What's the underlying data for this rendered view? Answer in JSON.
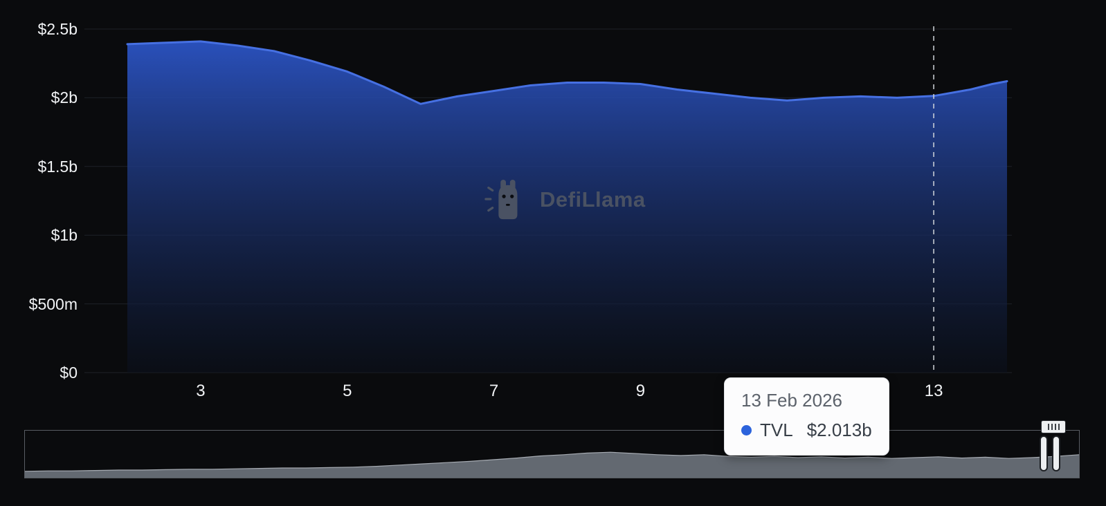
{
  "watermark": {
    "text": "DefiLlama"
  },
  "chart_data": {
    "type": "area",
    "series_name": "TVL",
    "x": [
      2,
      2.5,
      3,
      3.5,
      4,
      4.5,
      5,
      5.5,
      6,
      6.5,
      7,
      7.5,
      8,
      8.5,
      9,
      9.5,
      10,
      10.5,
      11,
      11.5,
      12,
      12.5,
      13,
      13.5,
      13.8,
      14
    ],
    "values": [
      2.39,
      2.4,
      2.41,
      2.38,
      2.34,
      2.27,
      2.19,
      2.08,
      1.955,
      2.01,
      2.05,
      2.09,
      2.11,
      2.11,
      2.1,
      2.06,
      2.03,
      2.0,
      1.98,
      2.0,
      2.01,
      2.0,
      2.013,
      2.06,
      2.1,
      2.12
    ],
    "value_unit": "$ billions",
    "xlim": [
      2,
      14
    ],
    "ylim": [
      0,
      2.5
    ],
    "y_ticks": [
      {
        "label": "$2.5b",
        "value": 2.5
      },
      {
        "label": "$2b",
        "value": 2
      },
      {
        "label": "$1.5b",
        "value": 1.5
      },
      {
        "label": "$1b",
        "value": 1
      },
      {
        "label": "$500m",
        "value": 0.5
      },
      {
        "label": "$0",
        "value": 0
      }
    ],
    "x_ticks": [
      {
        "label": "3",
        "value": 3
      },
      {
        "label": "5",
        "value": 5
      },
      {
        "label": "7",
        "value": 7
      },
      {
        "label": "9",
        "value": 9
      },
      {
        "label": "13",
        "value": 13
      }
    ],
    "grid": true,
    "legend_position": "none",
    "line_color": "#4670e2",
    "area_gradient_top": "#2b53c2",
    "area_gradient_bottom": "#0b101c",
    "grid_color": "#1e2228",
    "crosshair_x": 13
  },
  "tooltip": {
    "date": "13 Feb 2026",
    "series": "TVL",
    "value": "$2.013b",
    "marker_color": "#2c63dc"
  },
  "navigator": {
    "values": [
      0.12,
      0.13,
      0.13,
      0.14,
      0.15,
      0.15,
      0.16,
      0.17,
      0.17,
      0.18,
      0.19,
      0.2,
      0.2,
      0.21,
      0.22,
      0.24,
      0.27,
      0.3,
      0.33,
      0.36,
      0.4,
      0.44,
      0.49,
      0.52,
      0.56,
      0.58,
      0.55,
      0.52,
      0.5,
      0.52,
      0.48,
      0.46,
      0.48,
      0.45,
      0.47,
      0.44,
      0.46,
      0.43,
      0.45,
      0.47,
      0.44,
      0.46,
      0.43,
      0.45,
      0.48,
      0.52
    ],
    "area_color": "#6d737c",
    "outline_color": "#a6abb2"
  }
}
